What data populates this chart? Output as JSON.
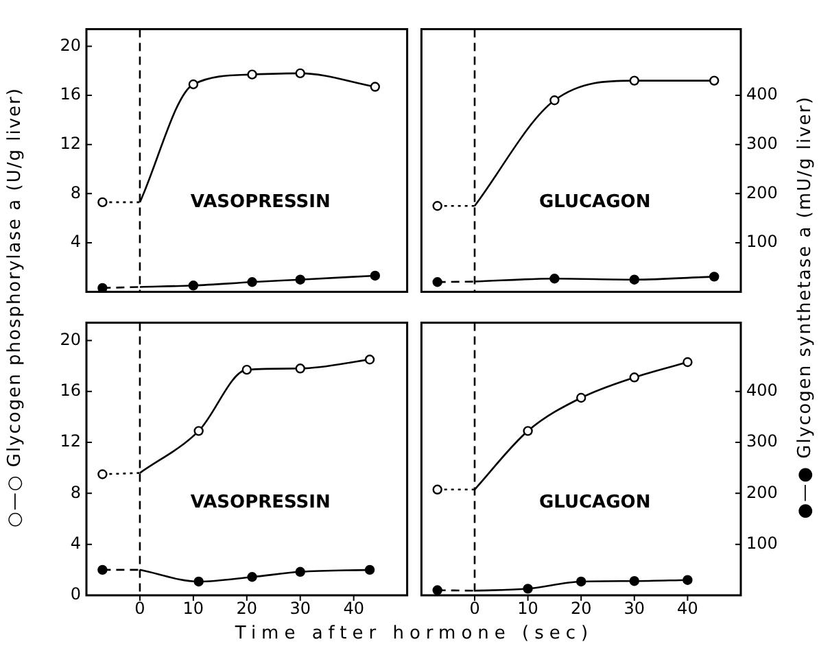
{
  "chart_data": [
    {
      "type": "line",
      "ylabel": "○—○  Glycogen phosphorylase a (U/g liver)",
      "annotations": [
        "VASOPRESSIN"
      ],
      "xlim": [
        -10,
        50
      ],
      "ylim": [
        0,
        21.4
      ],
      "yticks": [
        4,
        8,
        12,
        16,
        20
      ],
      "y2lim": [
        0,
        535
      ],
      "tick_labels": "y",
      "marker": "circle",
      "grid": false,
      "legend": false,
      "ref_lines": [
        {
          "axis": "x",
          "value": 0,
          "line_style": "dashed",
          "color": "#000000"
        }
      ],
      "series": [
        {
          "axis": "y",
          "color": "#000000",
          "line_style": "dotted",
          "x": [
            -7,
            0
          ],
          "values": [
            7.3,
            7.3
          ]
        },
        {
          "axis": "y",
          "color": "#000000",
          "line_style": "solid",
          "x": [
            0,
            10,
            21,
            30,
            44
          ],
          "values": [
            7.3,
            16.9,
            17.7,
            17.8,
            16.7
          ]
        },
        {
          "axis": "y2",
          "color": "#000000",
          "line_style": "dashed",
          "x": [
            -7,
            0
          ],
          "values": [
            8,
            10
          ]
        },
        {
          "axis": "y2",
          "color": "#000000",
          "line_style": "solid",
          "x": [
            0,
            10,
            21,
            30,
            44
          ],
          "values": [
            10,
            13,
            20,
            25,
            33
          ]
        }
      ]
    },
    {
      "type": "line",
      "y2label": "●—●  Glycogen synthetase a (mU/g liver)",
      "annotations": [
        "GLUCAGON"
      ],
      "xlim": [
        -10,
        50
      ],
      "ylim": [
        0,
        21.4
      ],
      "y2lim": [
        0,
        535
      ],
      "y2ticks": [
        100,
        200,
        300,
        400
      ],
      "tick_labels": "y2",
      "marker": "circle",
      "grid": false,
      "legend": false,
      "ref_lines": [
        {
          "axis": "x",
          "value": 0,
          "line_style": "dashed",
          "color": "#000000"
        }
      ],
      "series": [
        {
          "axis": "y",
          "color": "#000000",
          "line_style": "dotted",
          "x": [
            -7,
            0
          ],
          "values": [
            7.0,
            7.0
          ]
        },
        {
          "axis": "y",
          "color": "#000000",
          "line_style": "solid",
          "x": [
            0,
            15,
            30,
            45
          ],
          "values": [
            7.0,
            15.6,
            17.2,
            17.2
          ]
        },
        {
          "axis": "y2",
          "color": "#000000",
          "line_style": "dashed",
          "x": [
            -7,
            0
          ],
          "values": [
            20,
            21
          ]
        },
        {
          "axis": "y2",
          "color": "#000000",
          "line_style": "solid",
          "x": [
            0,
            15,
            30,
            45
          ],
          "values": [
            21,
            27,
            25,
            31
          ]
        }
      ]
    },
    {
      "type": "line",
      "xlabel": "Time after hormone (sec)",
      "annotations": [
        "VASOPRESSIN"
      ],
      "xlim": [
        -10,
        50
      ],
      "xticks": [
        0,
        10,
        20,
        30,
        40
      ],
      "ylim": [
        0,
        21.4
      ],
      "yticks": [
        0,
        4,
        8,
        12,
        16,
        20
      ],
      "y2lim": [
        0,
        535
      ],
      "tick_labels": "xy",
      "marker": "circle",
      "grid": false,
      "legend": false,
      "ref_lines": [
        {
          "axis": "x",
          "value": 0,
          "line_style": "dashed",
          "color": "#000000"
        }
      ],
      "series": [
        {
          "axis": "y",
          "color": "#000000",
          "line_style": "dotted",
          "x": [
            -7,
            0
          ],
          "values": [
            9.5,
            9.6
          ]
        },
        {
          "axis": "y",
          "color": "#000000",
          "line_style": "solid",
          "x": [
            0,
            11,
            20,
            30,
            43
          ],
          "values": [
            9.6,
            12.9,
            17.7,
            17.8,
            18.5
          ]
        },
        {
          "axis": "y2",
          "color": "#000000",
          "line_style": "dashed",
          "x": [
            -7,
            0
          ],
          "values": [
            50,
            50
          ]
        },
        {
          "axis": "y2",
          "color": "#000000",
          "line_style": "solid",
          "x": [
            0,
            11,
            21,
            30,
            43
          ],
          "values": [
            50,
            27,
            36,
            46,
            50
          ]
        }
      ]
    },
    {
      "type": "line",
      "annotations": [
        "GLUCAGON"
      ],
      "xlim": [
        -10,
        50
      ],
      "xticks": [
        0,
        10,
        20,
        30,
        40
      ],
      "ylim": [
        0,
        21.4
      ],
      "y2lim": [
        0,
        535
      ],
      "y2ticks": [
        100,
        200,
        300,
        400
      ],
      "tick_labels": "xy2",
      "marker": "circle",
      "grid": false,
      "legend": false,
      "ref_lines": [
        {
          "axis": "x",
          "value": 0,
          "line_style": "dashed",
          "color": "#000000"
        }
      ],
      "series": [
        {
          "axis": "y",
          "color": "#000000",
          "line_style": "dotted",
          "x": [
            -7,
            0
          ],
          "values": [
            8.3,
            8.3
          ]
        },
        {
          "axis": "y",
          "color": "#000000",
          "line_style": "solid",
          "x": [
            0,
            10,
            20,
            30,
            40
          ],
          "values": [
            8.3,
            12.9,
            15.5,
            17.1,
            18.3
          ]
        },
        {
          "axis": "y2",
          "color": "#000000",
          "line_style": "dashed",
          "x": [
            -7,
            0
          ],
          "values": [
            10,
            9
          ]
        },
        {
          "axis": "y2",
          "color": "#000000",
          "line_style": "solid",
          "x": [
            0,
            10,
            20,
            30,
            40
          ],
          "values": [
            9,
            13,
            27,
            28,
            30
          ]
        }
      ]
    }
  ]
}
